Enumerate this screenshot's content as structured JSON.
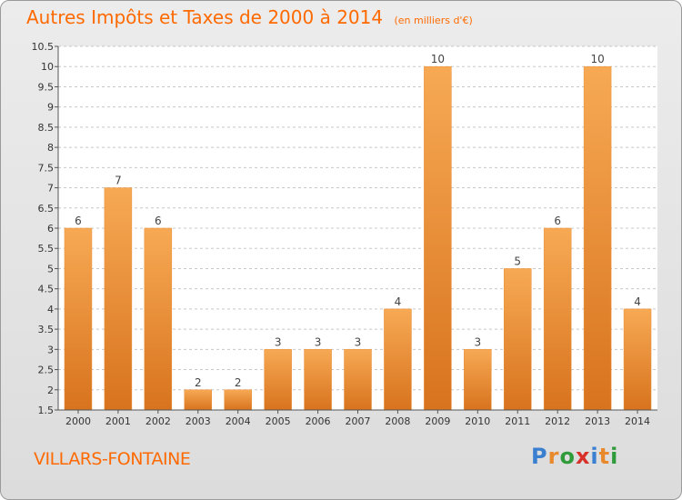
{
  "title": "Autres Impôts et Taxes de 2000 à 2014",
  "subtitle": "(en milliers d'€)",
  "town": "VILLARS-FONTAINE",
  "logo": {
    "text": "Proxiti",
    "letter_colors": [
      "#3b7fd1",
      "#e8892b",
      "#2f9b3a",
      "#d8312a",
      "#3b7fd1",
      "#e8892b",
      "#2f9b3a"
    ]
  },
  "colors": {
    "accent": "#ff6a00",
    "bar_light": "#f7a954",
    "bar_dark": "#d8731e",
    "grid": "#c8c8c8",
    "axis": "#555555"
  },
  "chart_data": {
    "type": "bar",
    "title": "Autres Impôts et Taxes de 2000 à 2014",
    "subtitle": "(en milliers d'€)",
    "categories": [
      "2000",
      "2001",
      "2002",
      "2003",
      "2004",
      "2005",
      "2006",
      "2007",
      "2008",
      "2009",
      "2010",
      "2011",
      "2012",
      "2013",
      "2014"
    ],
    "values": [
      6,
      7,
      6,
      2,
      2,
      3,
      3,
      3,
      4,
      10,
      3,
      5,
      6,
      10,
      4
    ],
    "data_labels": [
      "6",
      "7",
      "6",
      "2",
      "2",
      "3",
      "3",
      "3",
      "4",
      "10",
      "3",
      "5",
      "6",
      "10",
      "4"
    ],
    "ylim": [
      1.5,
      10.5
    ],
    "yticks": [
      1.5,
      2,
      2.5,
      3,
      3.5,
      4,
      4.5,
      5,
      5.5,
      6,
      6.5,
      7,
      7.5,
      8,
      8.5,
      9,
      9.5,
      10,
      10.5
    ],
    "ytick_labels": [
      "1.5",
      "2",
      "2.5",
      "3",
      "3.5",
      "4",
      "4.5",
      "5",
      "5.5",
      "6",
      "6.5",
      "7",
      "7.5",
      "8",
      "8.5",
      "9",
      "9.5",
      "10",
      "10.5"
    ],
    "grid": true,
    "xlabel": "",
    "ylabel": ""
  }
}
